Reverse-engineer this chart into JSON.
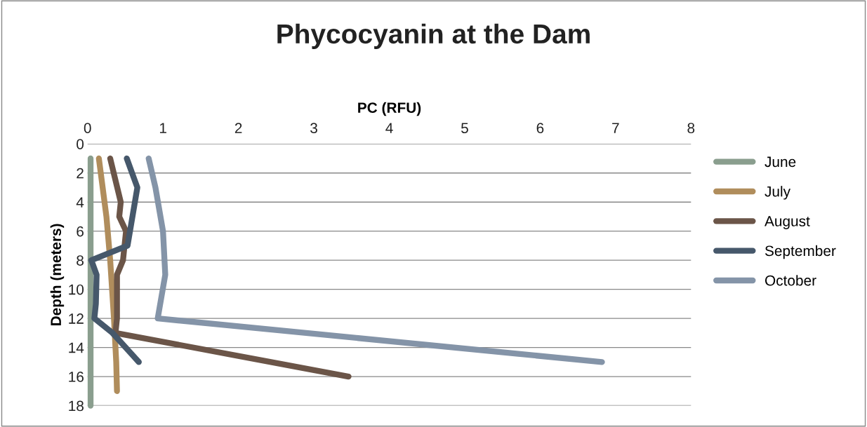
{
  "chart_data": {
    "type": "line",
    "title": "Phycocyanin at the Dam",
    "xlabel": "PC (RFU)",
    "ylabel": "Depth (meters)",
    "xlim": [
      0,
      8
    ],
    "xticks": [
      0,
      1,
      2,
      3,
      4,
      5,
      6,
      7,
      8
    ],
    "ylim": [
      18,
      0
    ],
    "yticks": [
      0,
      2,
      4,
      6,
      8,
      10,
      12,
      14,
      16,
      18
    ],
    "grid": "y",
    "legend": "right",
    "marker": "none",
    "line_style": "solid",
    "series": [
      {
        "name": "June",
        "color": "#8a9e8e",
        "x": [
          0.04,
          0.04,
          0.04,
          0.04,
          0.04,
          0.04
        ],
        "values": [
          1,
          4,
          8,
          12,
          15,
          18
        ]
      },
      {
        "name": "July",
        "color": "#b08d5c",
        "x": [
          0.15,
          0.2,
          0.25,
          0.3,
          0.35,
          0.38,
          0.39
        ],
        "values": [
          1,
          3,
          5,
          8,
          12,
          15,
          17
        ]
      },
      {
        "name": "August",
        "color": "#6b5548",
        "x": [
          0.3,
          0.44,
          0.42,
          0.51,
          0.47,
          0.39,
          0.39,
          0.37,
          3.46
        ],
        "values": [
          1,
          4,
          5,
          6,
          8,
          9,
          12,
          13,
          16
        ]
      },
      {
        "name": "September",
        "color": "#46586b",
        "x": [
          0.52,
          0.66,
          0.53,
          0.05,
          0.12,
          0.11,
          0.09,
          0.33,
          0.68
        ],
        "values": [
          1,
          3,
          7,
          8,
          9,
          11,
          12,
          13,
          15
        ]
      },
      {
        "name": "October",
        "color": "#8494a8",
        "x": [
          0.81,
          0.9,
          1.0,
          1.03,
          0.93,
          6.82
        ],
        "values": [
          1,
          3,
          6,
          9,
          12,
          15
        ]
      }
    ]
  }
}
